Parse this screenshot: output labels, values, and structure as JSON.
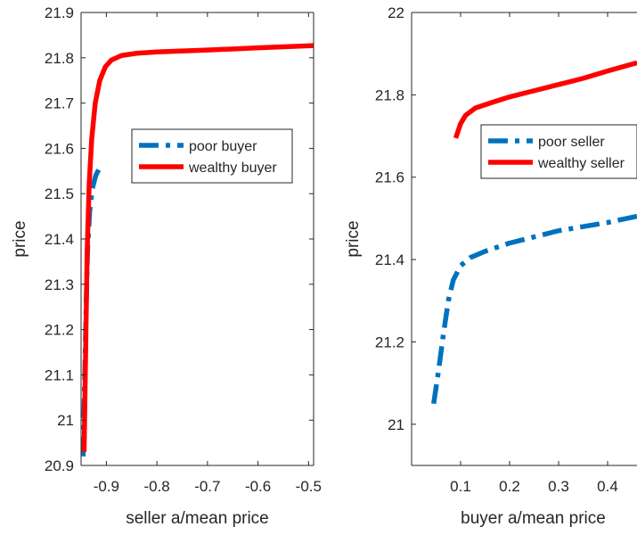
{
  "chart_data": [
    {
      "type": "line",
      "title": "",
      "xlabel": "seller a/mean price",
      "ylabel": "price",
      "xlim": [
        -0.95,
        -0.49
      ],
      "ylim": [
        20.9,
        21.9
      ],
      "xticks": [
        -0.9,
        -0.8,
        -0.7,
        -0.6,
        -0.5
      ],
      "yticks": [
        20.9,
        21.0,
        21.1,
        21.2,
        21.3,
        21.4,
        21.5,
        21.6,
        21.7,
        21.8,
        21.9
      ],
      "x_tick_labels": [
        "-0.9",
        "-0.8",
        "-0.7",
        "-0.6",
        "-0.5"
      ],
      "y_tick_labels": [
        "20.9",
        "21",
        "21.1",
        "21.2",
        "21.3",
        "21.4",
        "21.5",
        "21.6",
        "21.7",
        "21.8",
        "21.9"
      ],
      "grid": false,
      "legend_position": "upper-middle-right",
      "series": [
        {
          "name": "poor buyer",
          "color": "#0072BD",
          "style": "dashed",
          "points": [
            [
              -0.946,
              20.92
            ],
            [
              -0.943,
              21.08
            ],
            [
              -0.94,
              21.25
            ],
            [
              -0.937,
              21.38
            ],
            [
              -0.933,
              21.46
            ],
            [
              -0.928,
              21.51
            ],
            [
              -0.921,
              21.54
            ],
            [
              -0.912,
              21.56
            ]
          ]
        },
        {
          "name": "wealthy buyer",
          "color": "#FF0000",
          "style": "solid",
          "points": [
            [
              -0.944,
              20.93
            ],
            [
              -0.941,
              21.15
            ],
            [
              -0.938,
              21.37
            ],
            [
              -0.934,
              21.52
            ],
            [
              -0.929,
              21.62
            ],
            [
              -0.922,
              21.7
            ],
            [
              -0.913,
              21.75
            ],
            [
              -0.902,
              21.78
            ],
            [
              -0.89,
              21.795
            ],
            [
              -0.87,
              21.805
            ],
            [
              -0.84,
              21.81
            ],
            [
              -0.8,
              21.813
            ],
            [
              -0.7,
              21.817
            ],
            [
              -0.6,
              21.822
            ],
            [
              -0.49,
              21.827
            ]
          ]
        }
      ]
    },
    {
      "type": "line",
      "title": "",
      "xlabel": "buyer a/mean price",
      "ylabel": "price",
      "xlim": [
        0.0,
        0.46
      ],
      "ylim": [
        20.9,
        22.0
      ],
      "xticks": [
        0.1,
        0.2,
        0.3,
        0.4
      ],
      "yticks": [
        21.0,
        21.2,
        21.4,
        21.6,
        21.8,
        22.0
      ],
      "x_tick_labels": [
        "0.1",
        "0.2",
        "0.3",
        "0.4"
      ],
      "y_tick_labels": [
        "21",
        "21.2",
        "21.4",
        "21.6",
        "21.8",
        "22"
      ],
      "grid": false,
      "legend_position": "middle-right",
      "series": [
        {
          "name": "poor seller",
          "color": "#0072BD",
          "style": "dashed",
          "points": [
            [
              0.045,
              21.05
            ],
            [
              0.055,
              21.13
            ],
            [
              0.065,
              21.22
            ],
            [
              0.075,
              21.3
            ],
            [
              0.085,
              21.35
            ],
            [
              0.1,
              21.385
            ],
            [
              0.12,
              21.405
            ],
            [
              0.15,
              21.42
            ],
            [
              0.2,
              21.44
            ],
            [
              0.3,
              21.47
            ],
            [
              0.4,
              21.49
            ],
            [
              0.46,
              21.505
            ]
          ]
        },
        {
          "name": "wealthy seller",
          "color": "#FF0000",
          "style": "solid",
          "points": [
            [
              0.09,
              21.695
            ],
            [
              0.1,
              21.73
            ],
            [
              0.11,
              21.75
            ],
            [
              0.13,
              21.768
            ],
            [
              0.16,
              21.78
            ],
            [
              0.2,
              21.795
            ],
            [
              0.25,
              21.81
            ],
            [
              0.3,
              21.825
            ],
            [
              0.35,
              21.84
            ],
            [
              0.4,
              21.858
            ],
            [
              0.46,
              21.878
            ]
          ]
        }
      ]
    }
  ]
}
